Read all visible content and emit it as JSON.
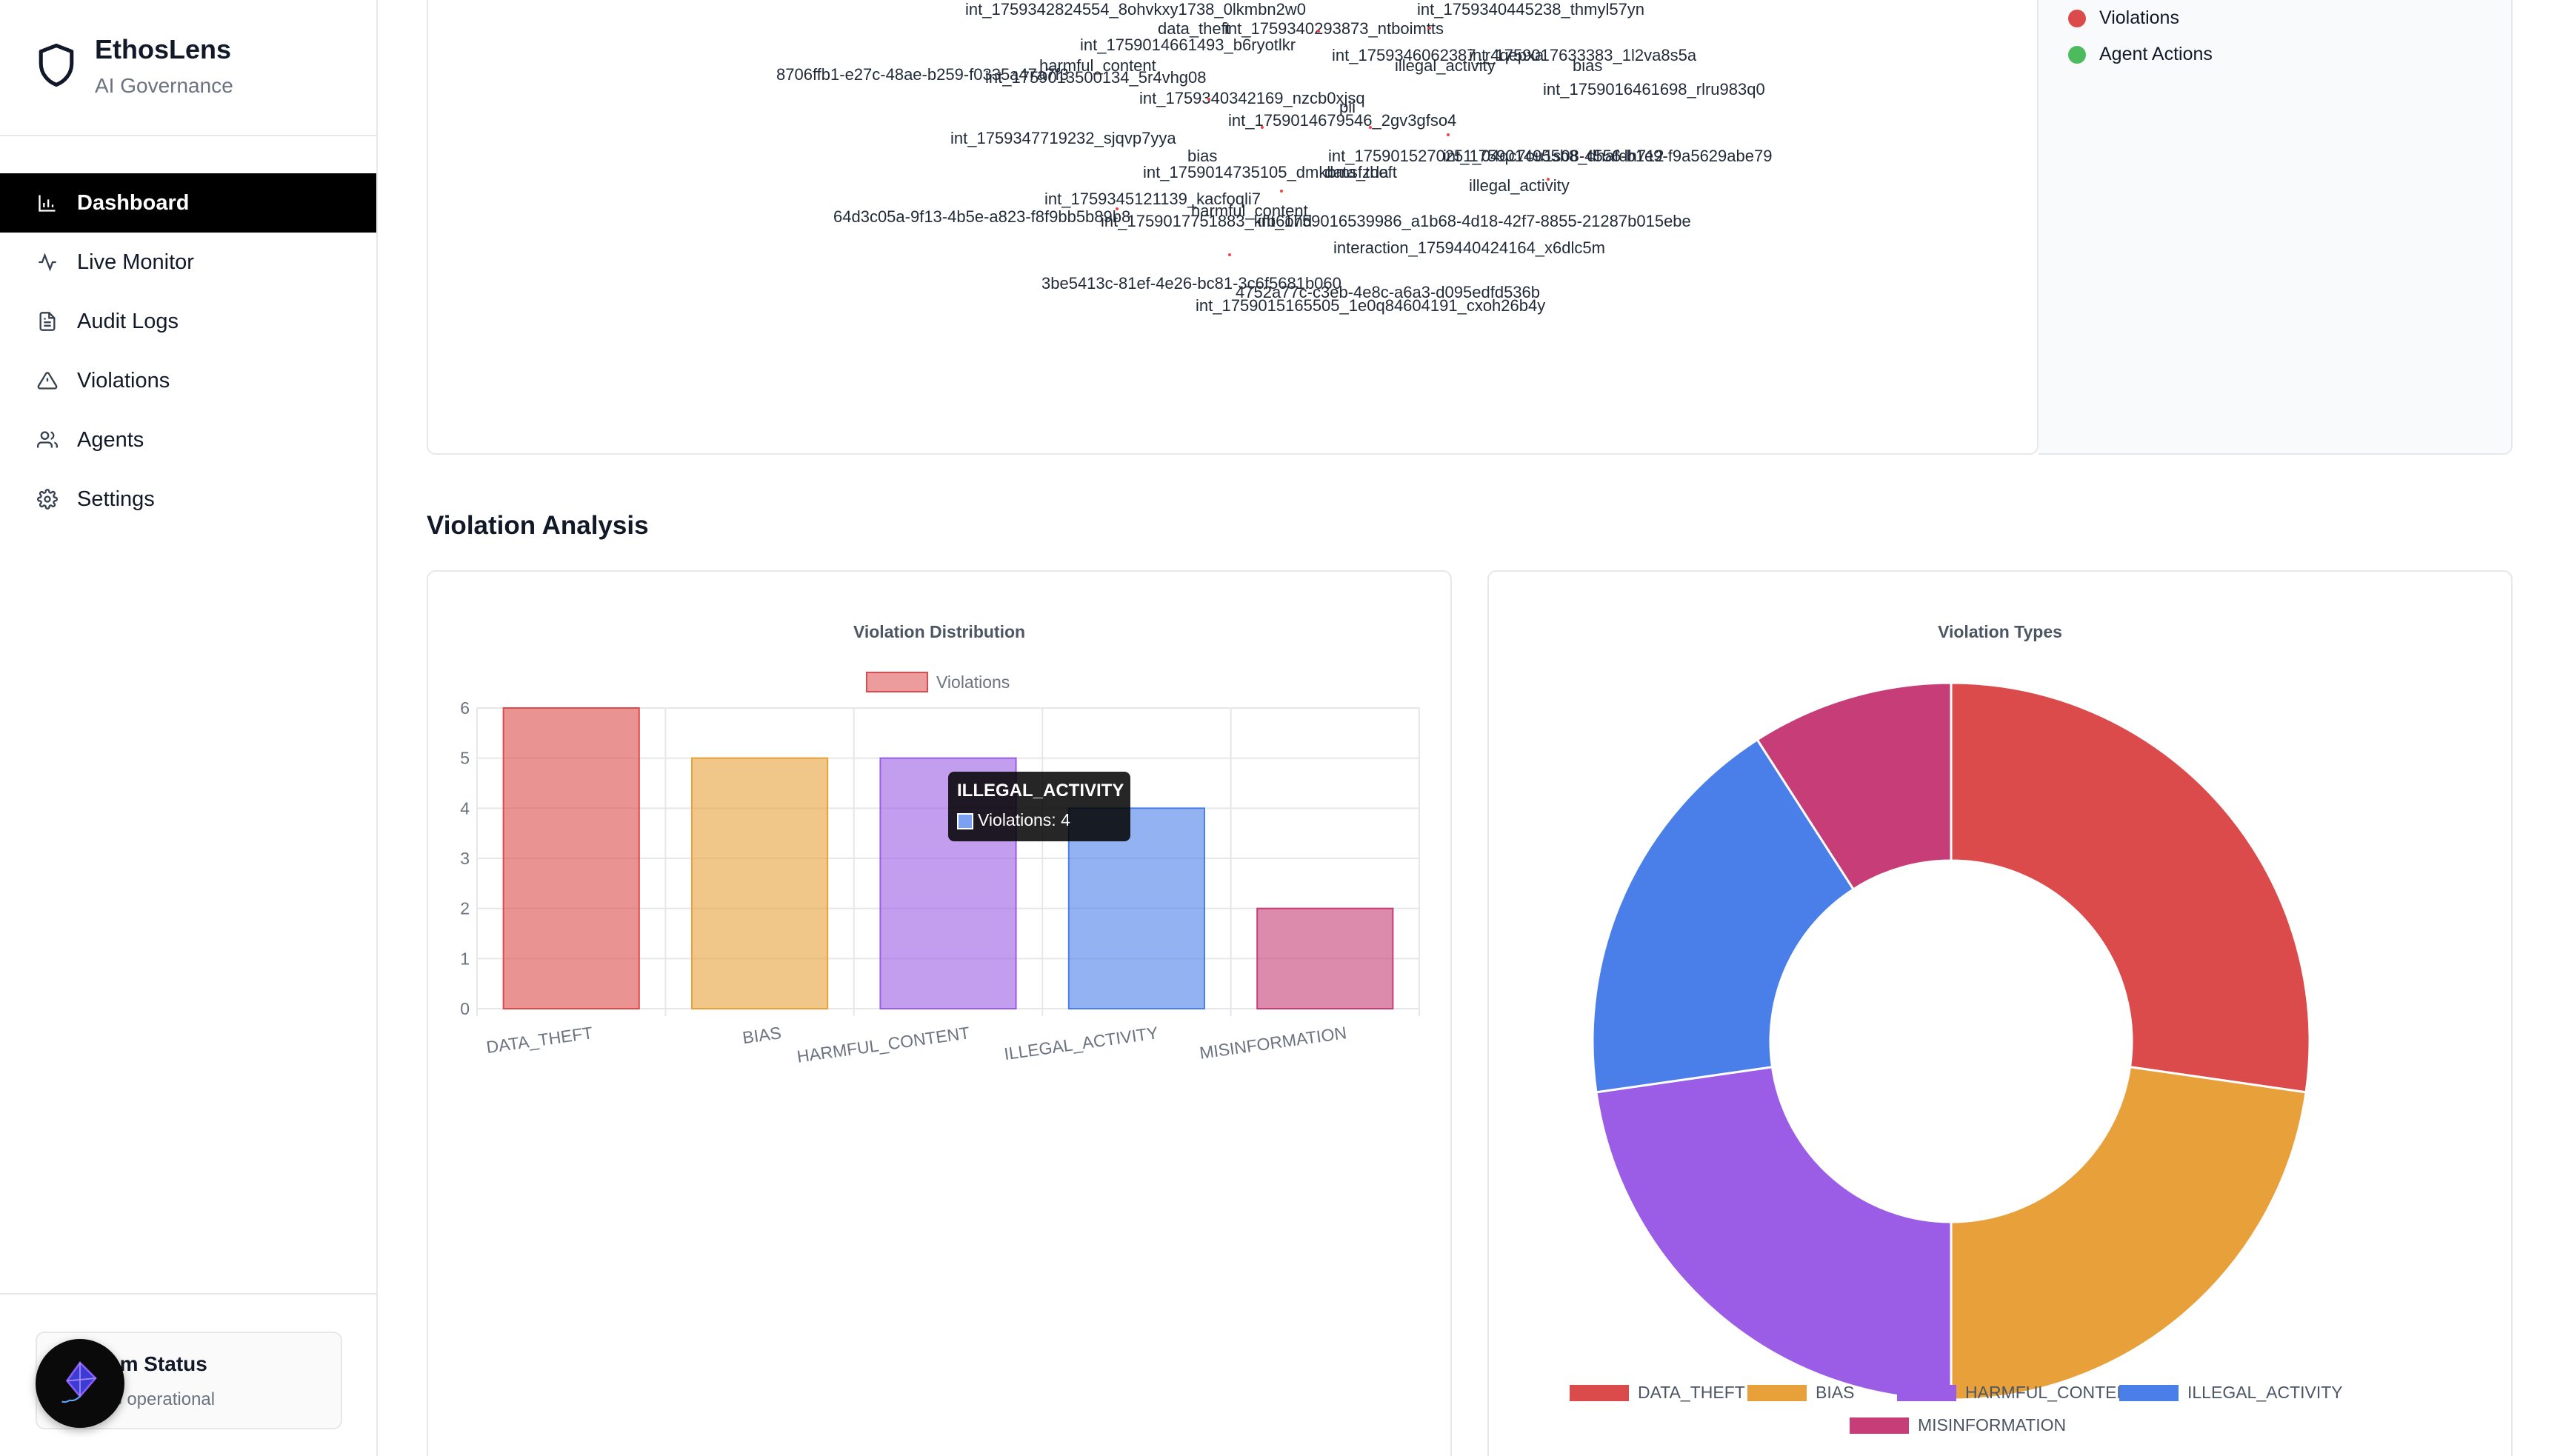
{
  "brand": {
    "title": "EthosLens",
    "subtitle": "AI Governance"
  },
  "nav": [
    {
      "label": "Dashboard",
      "icon": "bar-chart-icon",
      "active": true
    },
    {
      "label": "Live Monitor",
      "icon": "activity-icon",
      "active": false
    },
    {
      "label": "Audit Logs",
      "icon": "file-text-icon",
      "active": false
    },
    {
      "label": "Violations",
      "icon": "alert-triangle-icon",
      "active": false
    },
    {
      "label": "Agents",
      "icon": "users-icon",
      "active": false
    },
    {
      "label": "Settings",
      "icon": "gear-icon",
      "active": false
    }
  ],
  "system_status": {
    "title": "em Status",
    "subtitle": "ts operational"
  },
  "network_legend": [
    {
      "label": "Violations",
      "color": "#dc4b4b"
    },
    {
      "label": "Agent Actions",
      "color": "#4cbb5d"
    }
  ],
  "network_labels": [
    "int_1759342824554_8ohvkxy1738_0lkmbn2w0",
    "data_theft",
    "int_1759340293873_ntboimtts",
    "int_1759340445238_thmyl57yn",
    "int_1759014661493_b6ryotlkr",
    "int_1759346062387_r4qepxa",
    "int_1759017633383_1l2va8s5a",
    "illegal_activity",
    "bias",
    "harmful_content",
    "8706ffb1-e27c-48ae-b259-f0335a47a7f3",
    "int_1759013500134_5r4vhg08",
    "int_1759016461698_rlru983q0",
    "int_1759340342169_nzcb0xjsq",
    "pii",
    "int_1759014679546_2gv3gfso4",
    "int_1759347719232_sjqvp7yya",
    "bias",
    "int_1759015270251_04qc7ou1s08-4556-b1e9-f9a5629abe79",
    "int_1759014735105_dmkbmsfzda",
    "data_theft",
    "int_1759014955b8_dhafdh712",
    "illegal_activity",
    "int_1759345121139_kacfoqli7",
    "harmful_content",
    "64d3c05a-9f13-4b5e-a823-f8f9bb5b89b8",
    "int_1759017751883_kfb6ohd",
    "int_1759016539986_a1b68-4d18-42f7-8855-21287b015ebe",
    "interaction_1759440424164_x6dlc5m",
    "3be5413c-81ef-4e26-bc81-3c6f5681b060",
    "4752a77c-c3eb-4e8c-a6a3-d095edfd536b",
    "int_1759015165505_1e0q84604191_cxoh26b4y"
  ],
  "section": {
    "title": "Violation Analysis"
  },
  "colors": {
    "data_theft": "#dc4b4b",
    "bias": "#e8a13a",
    "harmful_content": "#9b5de5",
    "illegal_activity": "#4a7fea",
    "misinformation": "#c73d77"
  },
  "chart_data": [
    {
      "type": "bar",
      "title": "Violation Distribution",
      "legend": "Violations",
      "categories": [
        "DATA_THEFT",
        "BIAS",
        "HARMFUL_CONTENT",
        "ILLEGAL_ACTIVITY",
        "MISINFORMATION"
      ],
      "series": [
        {
          "name": "Violations",
          "values": [
            6,
            5,
            5,
            4,
            2
          ]
        }
      ],
      "ylim": [
        0,
        6
      ],
      "yticks": [
        "0",
        "1",
        "2",
        "3",
        "4",
        "5",
        "6"
      ],
      "grid": true,
      "legend_position": "top",
      "tooltip": {
        "title": "ILLEGAL_ACTIVITY",
        "text": "Violations: 4"
      }
    },
    {
      "type": "pie",
      "title": "Violation Types",
      "donut": true,
      "categories": [
        "DATA_THEFT",
        "BIAS",
        "HARMFUL_CONTENT",
        "ILLEGAL_ACTIVITY",
        "MISINFORMATION"
      ],
      "values": [
        6,
        5,
        5,
        4,
        2
      ],
      "legend_position": "bottom"
    }
  ]
}
